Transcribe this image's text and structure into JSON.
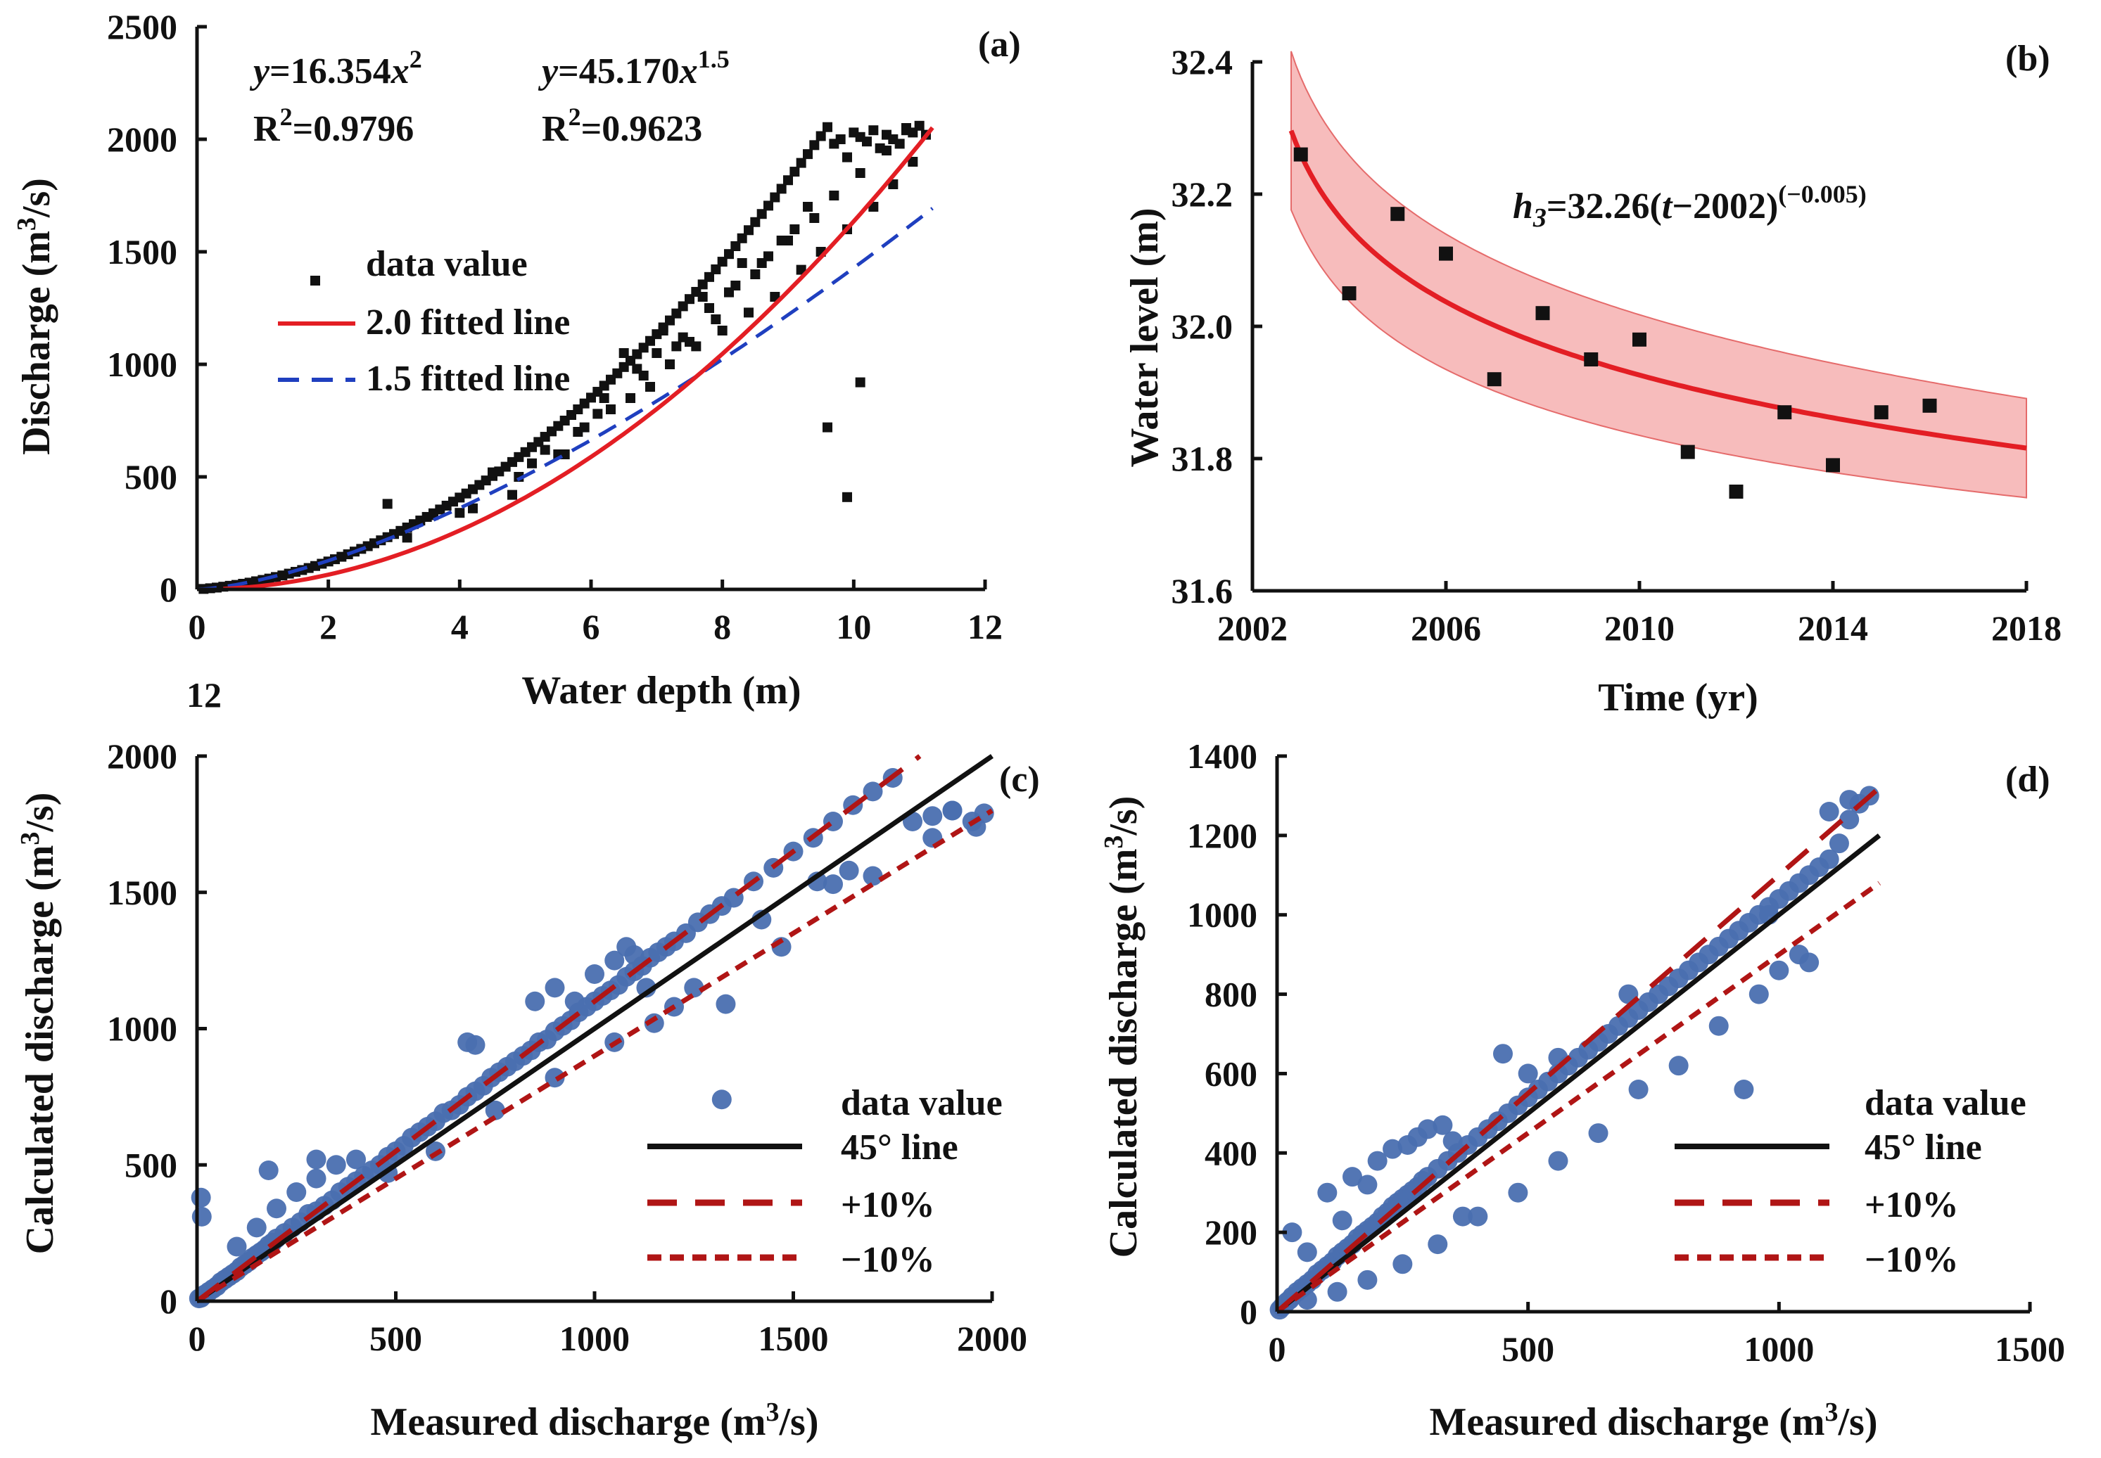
{
  "colors": {
    "fit2_red": "#e31e24",
    "fit15_blue": "#1f3fbf",
    "band_pink": "#f4a6a6",
    "points_black": "#111111",
    "points_blue": "#4a6fb0",
    "line_black": "#111111",
    "dash_darkred": "#b01515"
  },
  "chart_data": [
    {
      "id": "a",
      "type": "scatter",
      "panel_label": "(a)",
      "xlabel": "Water depth (m)",
      "ylabel_main": "Discharge (m",
      "ylabel_sup": "3",
      "ylabel_tail": "/s)",
      "xlim": [
        0,
        12
      ],
      "ylim": [
        0,
        2500
      ],
      "xticks": [
        0,
        2,
        4,
        6,
        8,
        10,
        12
      ],
      "yticks": [
        0,
        500,
        1000,
        1500,
        2000,
        2500
      ],
      "equations": [
        {
          "lhs": "y",
          "mid": "=16.354",
          "var": "x",
          "sup": "2",
          "r2_label": "R",
          "r2_sup": "2",
          "r2_value": "=0.9796"
        },
        {
          "lhs": "y",
          "mid": "=45.170",
          "var": "x",
          "sup": "1.5",
          "r2_label": "R",
          "r2_sup": "2",
          "r2_value": "=0.9623"
        }
      ],
      "legend": [
        "data value",
        "2.0 fitted line",
        "1.5 fitted line"
      ],
      "series": [
        {
          "name": "2.0 fitted line",
          "formula": "16.354*x^2",
          "x_range": [
            0,
            11.2
          ]
        },
        {
          "name": "1.5 fitted line",
          "formula": "45.170*x^1.5",
          "x_range": [
            0,
            11.2
          ]
        }
      ],
      "scatter": {
        "x": [
          0.1,
          0.2,
          0.3,
          0.4,
          0.5,
          0.6,
          0.7,
          0.8,
          0.9,
          1.0,
          1.1,
          1.2,
          1.3,
          1.4,
          1.5,
          1.6,
          1.7,
          1.8,
          1.9,
          2.0,
          2.1,
          2.2,
          2.3,
          2.4,
          2.5,
          2.6,
          2.7,
          2.8,
          2.9,
          3.0,
          3.1,
          3.2,
          3.3,
          3.4,
          3.5,
          3.6,
          3.7,
          3.8,
          3.9,
          4.0,
          4.1,
          4.2,
          4.3,
          4.4,
          4.5,
          4.6,
          4.7,
          4.8,
          4.9,
          5.0,
          5.1,
          5.2,
          5.3,
          5.4,
          5.5,
          5.6,
          5.7,
          5.8,
          5.9,
          6.0,
          6.1,
          6.2,
          6.3,
          6.4,
          6.5,
          6.6,
          6.7,
          6.8,
          6.9,
          7.0,
          7.1,
          7.2,
          7.3,
          7.4,
          7.5,
          7.6,
          7.7,
          7.8,
          7.9,
          8.0,
          8.1,
          8.2,
          8.3,
          8.4,
          8.5,
          8.6,
          8.7,
          8.8,
          8.9,
          9.0,
          9.1,
          9.2,
          9.3,
          9.4,
          9.5,
          9.6,
          9.7,
          9.8,
          9.9,
          10.0,
          10.1,
          10.2,
          10.3,
          10.4,
          10.5,
          10.6,
          10.7,
          10.8,
          10.9,
          11.0,
          2.9,
          3.6,
          4.5,
          5.1,
          5.8,
          6.3,
          6.9,
          7.2,
          7.6,
          8.0,
          8.4,
          8.8,
          9.2,
          9.5,
          9.9,
          10.3,
          10.6,
          10.9,
          11.1,
          3.2,
          4.0,
          4.8,
          5.5,
          6.1,
          6.6,
          7.0,
          7.4,
          7.8,
          8.2,
          8.6,
          9.0,
          9.4,
          9.7,
          10.1,
          10.5,
          10.8,
          9.6,
          9.9,
          10.1,
          6.5,
          7.1,
          7.7,
          8.3,
          8.9,
          9.3,
          5.3,
          5.9,
          6.7,
          7.3,
          7.9,
          8.5,
          9.1,
          4.2,
          4.9,
          5.6,
          6.2,
          6.8,
          7.5,
          8.1,
          8.7
        ],
        "y": [
          2,
          5,
          8,
          12,
          16,
          20,
          25,
          30,
          36,
          42,
          48,
          55,
          62,
          70,
          78,
          86,
          95,
          104,
          114,
          124,
          134,
          145,
          156,
          168,
          180,
          192,
          205,
          218,
          232,
          246,
          260,
          275,
          290,
          306,
          322,
          338,
          355,
          372,
          390,
          408,
          426,
          445,
          464,
          484,
          504,
          524,
          545,
          566,
          588,
          610,
          632,
          655,
          678,
          702,
          726,
          750,
          775,
          800,
          826,
          852,
          878,
          905,
          932,
          960,
          988,
          1016,
          1045,
          1074,
          1104,
          1134,
          1164,
          1195,
          1226,
          1258,
          1290,
          1322,
          1355,
          1388,
          1422,
          1456,
          1490,
          1525,
          1560,
          1596,
          1632,
          1668,
          1705,
          1742,
          1780,
          1818,
          1856,
          1895,
          1934,
          1974,
          2014,
          2054,
          1980,
          2000,
          1920,
          2030,
          2010,
          1990,
          2040,
          1960,
          2020,
          2000,
          1980,
          2050,
          2030,
          2060,
          380,
          330,
          520,
          560,
          700,
          800,
          900,
          1000,
          1080,
          1150,
          1230,
          1300,
          1420,
          1500,
          1600,
          1700,
          1800,
          1900,
          2020,
          230,
          340,
          420,
          600,
          780,
          850,
          1050,
          1120,
          1250,
          1350,
          1450,
          1550,
          1650,
          1750,
          1850,
          1950,
          2040,
          720,
          410,
          920,
          1050,
          1150,
          1300,
          1450,
          1550,
          1700,
          620,
          720,
          980,
          1080,
          1200,
          1400,
          1600,
          360,
          500,
          600,
          850,
          950,
          1100,
          1320,
          1480
        ]
      }
    },
    {
      "id": "b",
      "type": "scatter",
      "panel_label": "(b)",
      "xlabel": "Time (yr)",
      "ylabel": "Water level (m)",
      "xlim": [
        2002,
        2018
      ],
      "ylim": [
        31.6,
        32.4
      ],
      "xticks": [
        2002,
        2006,
        2010,
        2014,
        2018
      ],
      "ytick_labels": [
        "31.6",
        "31.8",
        "32.0",
        "32.2",
        "32.4"
      ],
      "yticks": [
        31.6,
        31.8,
        32.0,
        32.2,
        32.4
      ],
      "equation": {
        "lhs": "h",
        "sub": "3",
        "rhs_a": "=32.26(",
        "var": "t",
        "rhs_b": "−2002)",
        "sup": "(−0.005)"
      },
      "fit": {
        "formula": "32.26*(t-2002)^(-0.005)",
        "t_range": [
          2002.8,
          2018
        ],
        "band_halfwidth_start": 0.12,
        "band_halfwidth_end": 0.075
      },
      "scatter": {
        "x": [
          2003,
          2004,
          2005,
          2006,
          2007,
          2008,
          2009,
          2010,
          2011,
          2012,
          2013,
          2014,
          2015,
          2016
        ],
        "y": [
          32.26,
          32.05,
          32.17,
          32.11,
          31.92,
          32.02,
          31.95,
          31.98,
          31.81,
          31.75,
          31.87,
          31.79,
          31.87,
          31.88
        ]
      }
    },
    {
      "id": "c",
      "type": "scatter",
      "panel_label": "(c)",
      "xlabel_main": "Measured  discharge (m",
      "xlabel_sup": "3",
      "xlabel_tail": "/s)",
      "ylabel_main": "Calculated discharge (m",
      "ylabel_sup": "3",
      "ylabel_tail": "/s)",
      "xlim": [
        0,
        2000
      ],
      "ylim": [
        0,
        2000
      ],
      "xticks": [
        0,
        500,
        1000,
        1500,
        2000
      ],
      "yticks": [
        0,
        500,
        1000,
        1500,
        2000
      ],
      "legend": [
        "data value",
        "45° line",
        "+10%",
        "−10%"
      ],
      "lines": [
        {
          "name": "45° line",
          "slope": 1.0
        },
        {
          "name": "+10%",
          "slope": 1.1
        },
        {
          "name": "−10%",
          "slope": 0.9
        }
      ],
      "scatter": {
        "x": [
          5,
          10,
          15,
          20,
          30,
          40,
          50,
          60,
          70,
          80,
          90,
          100,
          110,
          120,
          130,
          140,
          150,
          160,
          170,
          180,
          190,
          200,
          220,
          240,
          260,
          280,
          300,
          320,
          340,
          360,
          380,
          400,
          420,
          440,
          460,
          480,
          500,
          520,
          540,
          560,
          580,
          600,
          620,
          640,
          660,
          680,
          700,
          720,
          740,
          760,
          780,
          800,
          820,
          840,
          860,
          880,
          900,
          920,
          940,
          960,
          980,
          1000,
          1020,
          1040,
          1060,
          1080,
          1100,
          1120,
          1140,
          1160,
          1180,
          1200,
          1230,
          1260,
          1290,
          1320,
          1350,
          1400,
          1450,
          1500,
          1550,
          1600,
          1650,
          1700,
          1750,
          1800,
          1850,
          1900,
          1950,
          1980,
          10,
          12,
          100,
          150,
          200,
          250,
          300,
          350,
          400,
          680,
          700,
          850,
          900,
          950,
          1000,
          1050,
          1080,
          1100,
          1130,
          1150,
          1200,
          1320,
          1330,
          1420,
          1560,
          1600,
          1640,
          1900,
          1960,
          600,
          750,
          900,
          1050,
          1250,
          1470,
          1700,
          1850,
          180,
          300,
          480
        ],
        "y": [
          10,
          12,
          20,
          25,
          35,
          45,
          55,
          70,
          80,
          90,
          100,
          110,
          125,
          135,
          145,
          160,
          170,
          180,
          190,
          205,
          215,
          230,
          250,
          270,
          290,
          320,
          330,
          350,
          370,
          400,
          420,
          440,
          460,
          480,
          500,
          530,
          550,
          570,
          600,
          620,
          640,
          660,
          690,
          700,
          720,
          750,
          770,
          790,
          820,
          840,
          860,
          880,
          900,
          920,
          950,
          960,
          990,
          1010,
          1030,
          1060,
          1080,
          1100,
          1120,
          1140,
          1160,
          1190,
          1210,
          1230,
          1260,
          1280,
          1300,
          1320,
          1350,
          1390,
          1420,
          1450,
          1480,
          1540,
          1590,
          1650,
          1700,
          1760,
          1820,
          1870,
          1920,
          1760,
          1780,
          1800,
          1760,
          1790,
          380,
          310,
          200,
          270,
          340,
          400,
          450,
          500,
          520,
          950,
          940,
          1100,
          1150,
          1100,
          1200,
          1250,
          1300,
          1270,
          1150,
          1020,
          1080,
          740,
          1090,
          1400,
          1540,
          1530,
          1580,
          1800,
          1740,
          550,
          700,
          820,
          950,
          1150,
          1300,
          1560,
          1700,
          480,
          520,
          470
        ]
      }
    },
    {
      "id": "d",
      "type": "scatter",
      "panel_label": "(d)",
      "xlabel_main": "Measured  discharge (m",
      "xlabel_sup": "3",
      "xlabel_tail": "/s)",
      "ylabel_main": "Calculated discharge (m",
      "ylabel_sup": "3",
      "ylabel_tail": "/s)",
      "xlim": [
        0,
        1500
      ],
      "ylim": [
        0,
        1400
      ],
      "xticks": [
        0,
        500,
        1000,
        1500
      ],
      "yticks": [
        0,
        200,
        400,
        600,
        800,
        1000,
        1200,
        1400
      ],
      "legend": [
        "data value",
        "45° line",
        "+10%",
        "−10%"
      ],
      "lines": [
        {
          "name": "45° line",
          "slope": 1.0,
          "x_end": 1200
        },
        {
          "name": "+10%",
          "slope": 1.1,
          "x_end": 1200
        },
        {
          "name": "−10%",
          "slope": 0.9,
          "x_end": 1200
        }
      ],
      "scatter": {
        "x": [
          5,
          10,
          15,
          20,
          25,
          30,
          40,
          50,
          60,
          70,
          80,
          90,
          100,
          110,
          120,
          130,
          140,
          150,
          160,
          170,
          180,
          190,
          200,
          210,
          220,
          230,
          240,
          250,
          260,
          270,
          280,
          290,
          300,
          320,
          340,
          360,
          380,
          400,
          420,
          440,
          460,
          480,
          500,
          520,
          540,
          560,
          580,
          600,
          620,
          640,
          660,
          680,
          700,
          720,
          740,
          760,
          780,
          800,
          820,
          840,
          860,
          880,
          900,
          920,
          940,
          960,
          980,
          1000,
          1020,
          1040,
          1060,
          1080,
          1100,
          1120,
          1140,
          1160,
          1180,
          30,
          60,
          100,
          130,
          150,
          180,
          200,
          230,
          260,
          280,
          300,
          330,
          350,
          370,
          450,
          500,
          560,
          700,
          930,
          980,
          1000,
          1060,
          1100,
          1140,
          60,
          120,
          180,
          250,
          320,
          400,
          480,
          560,
          640,
          720,
          800,
          880,
          960,
          1040
        ],
        "y": [
          5,
          12,
          18,
          25,
          30,
          38,
          50,
          60,
          70,
          80,
          95,
          105,
          115,
          125,
          140,
          150,
          160,
          170,
          185,
          195,
          205,
          215,
          225,
          240,
          250,
          265,
          275,
          285,
          295,
          305,
          315,
          330,
          340,
          360,
          380,
          400,
          420,
          440,
          460,
          480,
          500,
          520,
          540,
          560,
          580,
          600,
          620,
          640,
          660,
          680,
          700,
          720,
          740,
          760,
          780,
          800,
          820,
          840,
          860,
          880,
          900,
          920,
          940,
          960,
          980,
          1000,
          1020,
          1040,
          1060,
          1080,
          1100,
          1120,
          1140,
          1180,
          1240,
          1280,
          1300,
          200,
          150,
          300,
          230,
          340,
          320,
          380,
          410,
          420,
          440,
          460,
          470,
          430,
          240,
          650,
          600,
          640,
          800,
          560,
          1000,
          860,
          880,
          1260,
          1290,
          30,
          50,
          80,
          120,
          170,
          240,
          300,
          380,
          450,
          560,
          620,
          720,
          800,
          900
        ]
      }
    }
  ]
}
